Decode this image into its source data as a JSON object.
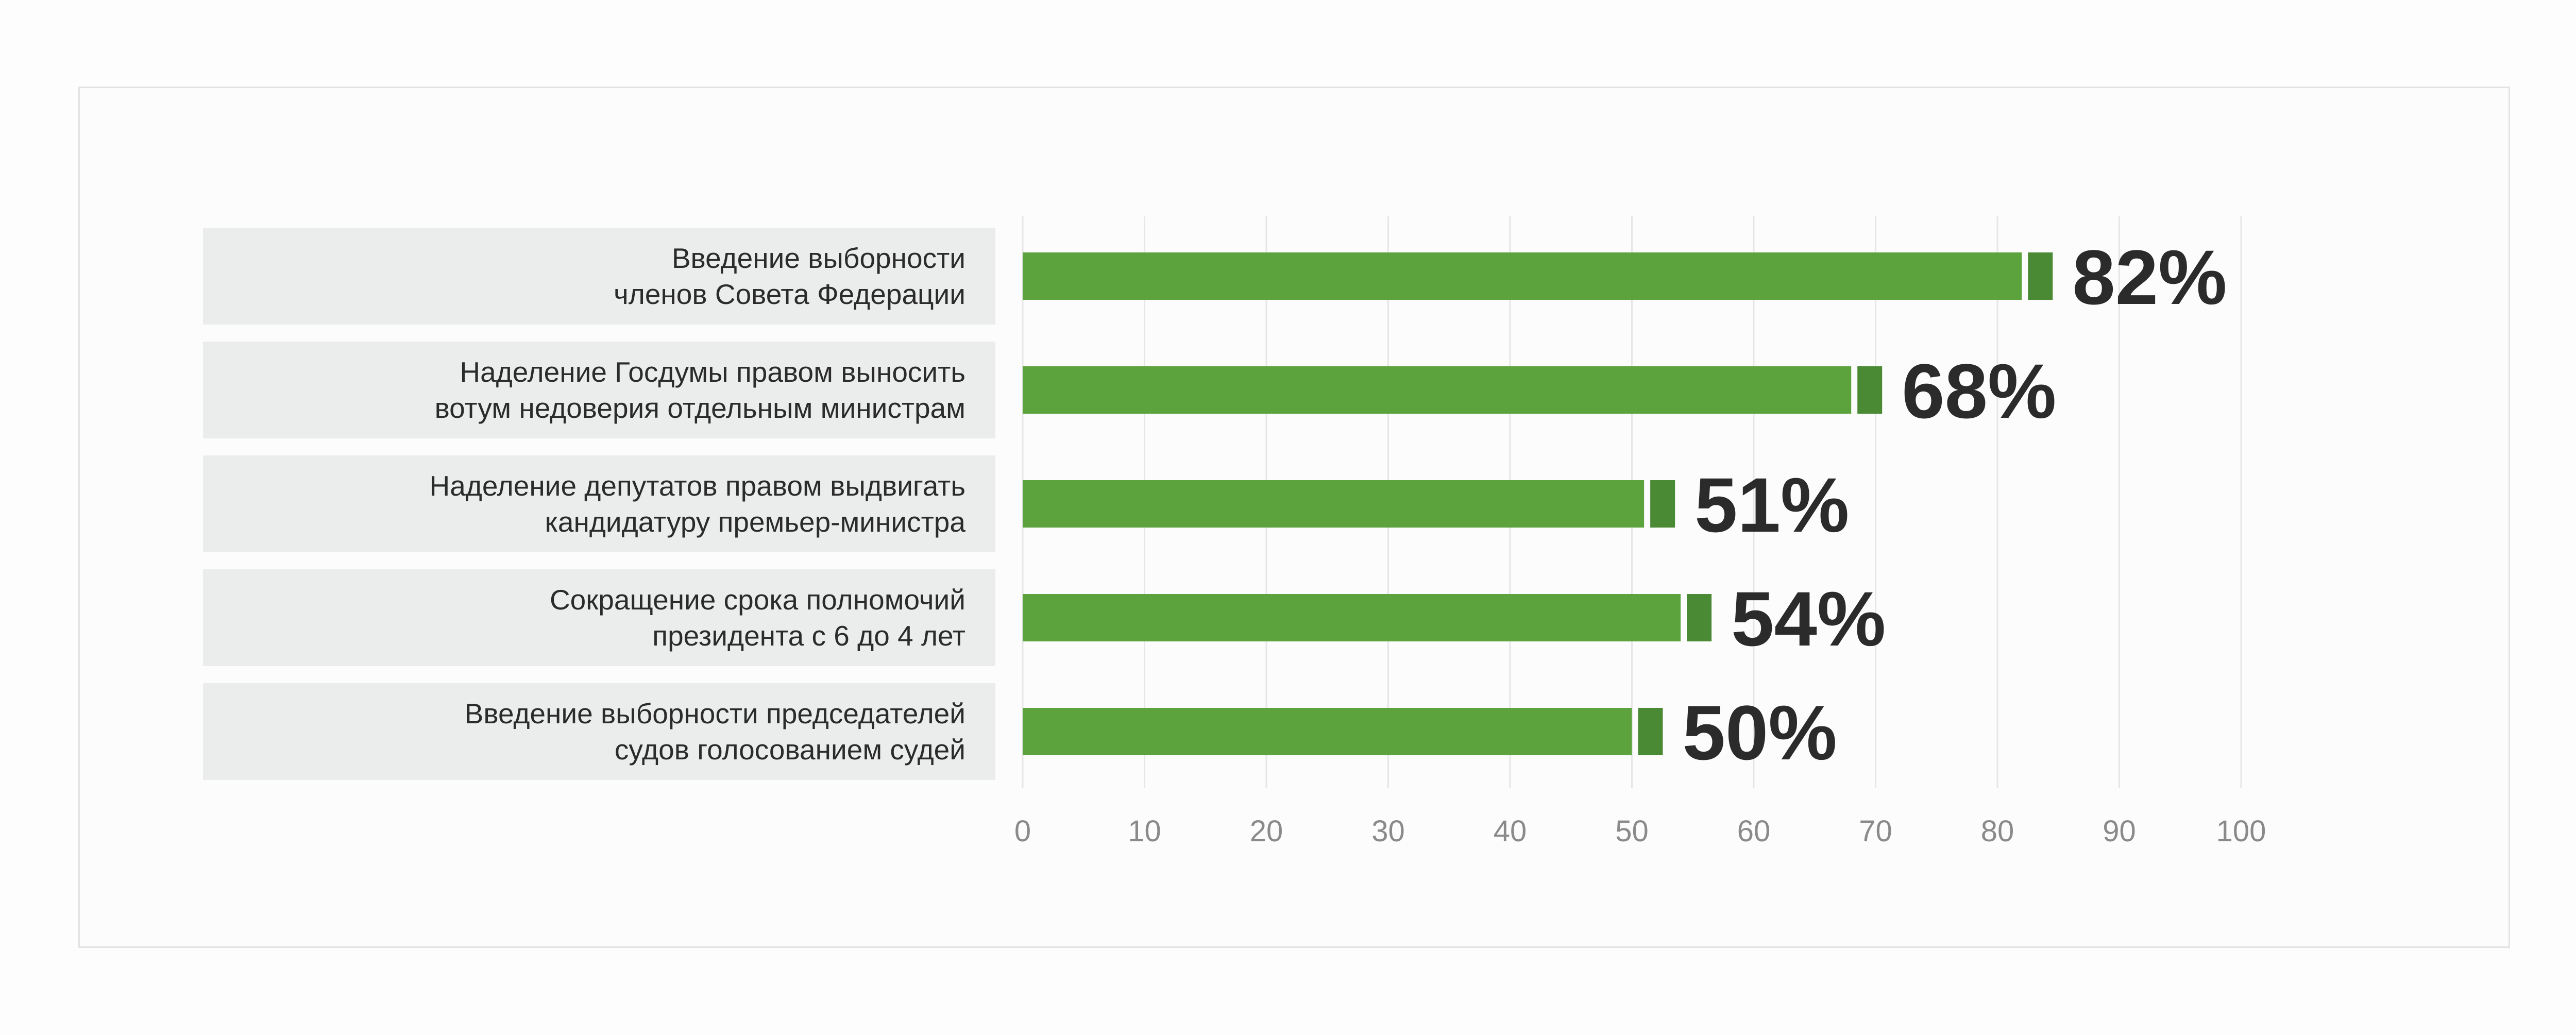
{
  "chart_data": {
    "type": "bar",
    "orientation": "horizontal",
    "categories": [
      [
        "Введение выборности",
        "членов Совета Федерации"
      ],
      [
        "Наделение Госдумы правом выносить",
        "вотум недоверия отдельным министрам"
      ],
      [
        "Наделение депутатов правом выдвигать",
        "кандидатуру премьер-министра"
      ],
      [
        "Сокращение срока полномочий",
        "президента с 6 до 4 лет"
      ],
      [
        "Введение выборности председателей",
        "судов голосованием судей"
      ]
    ],
    "values": [
      82,
      68,
      51,
      54,
      50
    ],
    "value_labels": [
      "82%",
      "68%",
      "51%",
      "54%",
      "50%"
    ],
    "xlim": [
      0,
      100
    ],
    "xticks": [
      "0",
      "10",
      "20",
      "30",
      "40",
      "50",
      "60",
      "70",
      "80",
      "90",
      "100"
    ],
    "grid": true,
    "title": "",
    "xlabel": "",
    "ylabel": ""
  },
  "colors": {
    "bar": "#5ca23d",
    "bar_cap": "#4a8a35",
    "label_bg": "#ebecec",
    "text": "#2b2b2b",
    "tick": "#8a8a8a",
    "grid": "#e6e6e6"
  }
}
